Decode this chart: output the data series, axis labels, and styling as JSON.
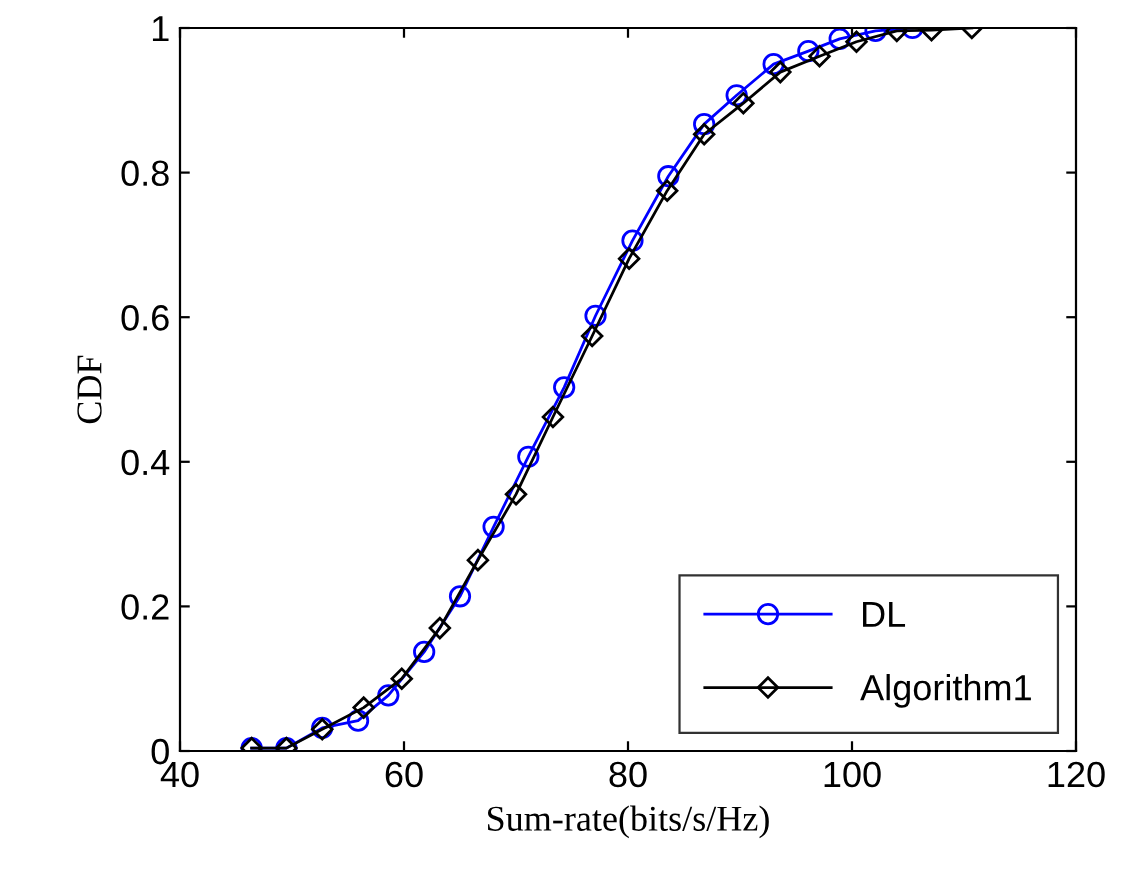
{
  "chart_data": {
    "type": "line",
    "xlabel": "Sum-rate(bits/s/Hz)",
    "ylabel": "CDF",
    "xlim": [
      40,
      120
    ],
    "ylim": [
      0,
      1
    ],
    "xticks": [
      40,
      60,
      80,
      100,
      120
    ],
    "yticks": [
      0,
      0.2,
      0.4,
      0.6,
      0.8,
      1
    ],
    "grid": false,
    "legend": "bottom right",
    "series": [
      {
        "name": "DL",
        "color": "#0000ff",
        "marker": "circle",
        "x": [
          46.4,
          49.5,
          52.7,
          55.9,
          58.6,
          61.8,
          65.0,
          68.0,
          71.1,
          74.3,
          77.1,
          80.4,
          83.6,
          86.8,
          89.7,
          93.0,
          96.1,
          98.9,
          102.1,
          105.4
        ],
        "values": [
          0.004,
          0.004,
          0.032,
          0.042,
          0.077,
          0.137,
          0.214,
          0.31,
          0.407,
          0.503,
          0.602,
          0.706,
          0.795,
          0.867,
          0.907,
          0.95,
          0.968,
          0.985,
          0.996,
          1.0
        ]
      },
      {
        "name": "Algorithm1",
        "color": "#000000",
        "marker": "diamond",
        "x": [
          46.4,
          49.5,
          52.7,
          56.4,
          59.8,
          63.2,
          66.6,
          70.0,
          73.3,
          76.8,
          80.1,
          83.5,
          86.8,
          90.3,
          93.6,
          97.1,
          100.4,
          104.0,
          107.1,
          110.7
        ],
        "values": [
          0.004,
          0.004,
          0.03,
          0.06,
          0.1,
          0.17,
          0.264,
          0.355,
          0.462,
          0.574,
          0.681,
          0.775,
          0.853,
          0.896,
          0.939,
          0.961,
          0.981,
          0.996,
          0.997,
          1.0
        ]
      }
    ]
  }
}
